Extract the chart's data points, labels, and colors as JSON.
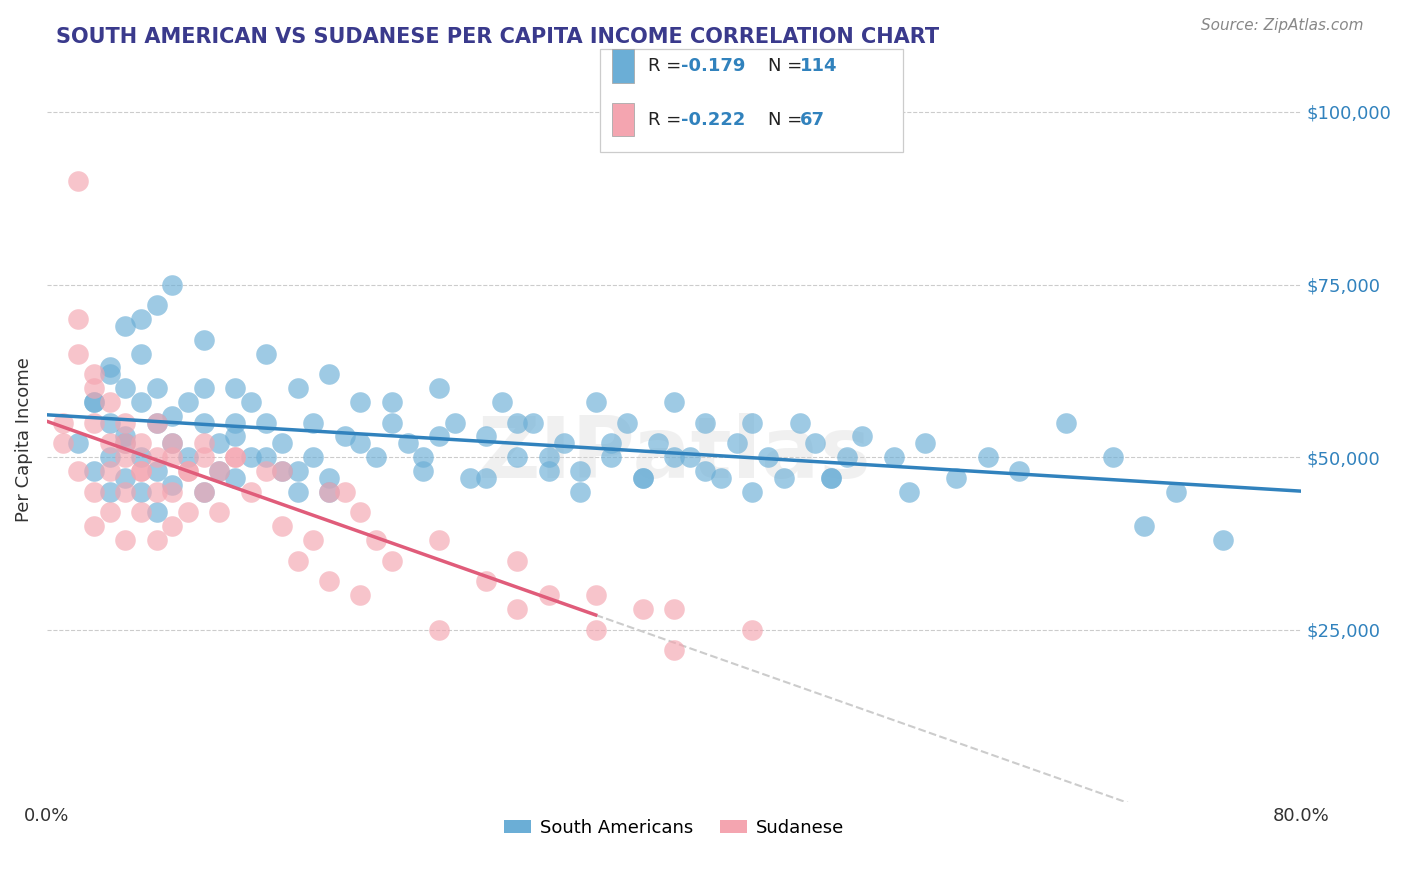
{
  "title": "SOUTH AMERICAN VS SUDANESE PER CAPITA INCOME CORRELATION CHART",
  "source": "Source: ZipAtlas.com",
  "ylabel": "Per Capita Income",
  "xlim": [
    0.0,
    0.8
  ],
  "ylim": [
    0,
    105000
  ],
  "yticks": [
    0,
    25000,
    50000,
    75000,
    100000
  ],
  "ytick_labels": [
    "",
    "$25,000",
    "$50,000",
    "$75,000",
    "$100,000"
  ],
  "legend_r1": "-0.179",
  "legend_n1": "114",
  "legend_r2": "-0.222",
  "legend_n2": "67",
  "color_blue": "#6baed6",
  "color_pink": "#f4a5b0",
  "line_blue": "#3182bd",
  "line_pink": "#e05c7a",
  "line_dashed": "#cccccc",
  "watermark": "ZIPatlas",
  "title_color": "#3a3a8c",
  "source_color": "#888888",
  "background_color": "#ffffff",
  "south_americans_x": [
    0.02,
    0.03,
    0.03,
    0.04,
    0.04,
    0.04,
    0.04,
    0.05,
    0.05,
    0.05,
    0.05,
    0.06,
    0.06,
    0.06,
    0.06,
    0.07,
    0.07,
    0.07,
    0.07,
    0.08,
    0.08,
    0.08,
    0.09,
    0.09,
    0.1,
    0.1,
    0.1,
    0.11,
    0.11,
    0.12,
    0.12,
    0.12,
    0.13,
    0.13,
    0.14,
    0.14,
    0.15,
    0.15,
    0.16,
    0.16,
    0.17,
    0.17,
    0.18,
    0.18,
    0.19,
    0.2,
    0.21,
    0.22,
    0.23,
    0.24,
    0.25,
    0.26,
    0.27,
    0.28,
    0.29,
    0.3,
    0.31,
    0.32,
    0.33,
    0.34,
    0.35,
    0.36,
    0.37,
    0.38,
    0.39,
    0.4,
    0.41,
    0.42,
    0.43,
    0.44,
    0.45,
    0.46,
    0.47,
    0.48,
    0.49,
    0.5,
    0.51,
    0.52,
    0.54,
    0.56,
    0.58,
    0.6,
    0.62,
    0.65,
    0.68,
    0.7,
    0.72,
    0.75,
    0.03,
    0.04,
    0.05,
    0.06,
    0.07,
    0.08,
    0.1,
    0.12,
    0.14,
    0.16,
    0.18,
    0.2,
    0.22,
    0.24,
    0.25,
    0.28,
    0.3,
    0.32,
    0.34,
    0.36,
    0.38,
    0.4,
    0.42,
    0.45,
    0.5,
    0.55
  ],
  "south_americans_y": [
    52000,
    58000,
    48000,
    55000,
    62000,
    45000,
    50000,
    60000,
    52000,
    47000,
    53000,
    58000,
    65000,
    50000,
    45000,
    55000,
    48000,
    42000,
    60000,
    52000,
    56000,
    46000,
    50000,
    58000,
    67000,
    55000,
    45000,
    52000,
    48000,
    60000,
    53000,
    47000,
    58000,
    50000,
    65000,
    55000,
    52000,
    48000,
    60000,
    45000,
    55000,
    50000,
    47000,
    62000,
    53000,
    58000,
    50000,
    55000,
    52000,
    48000,
    60000,
    55000,
    47000,
    53000,
    58000,
    50000,
    55000,
    48000,
    52000,
    45000,
    58000,
    50000,
    55000,
    47000,
    52000,
    58000,
    50000,
    55000,
    47000,
    52000,
    55000,
    50000,
    47000,
    55000,
    52000,
    47000,
    50000,
    53000,
    50000,
    52000,
    47000,
    50000,
    48000,
    55000,
    50000,
    40000,
    45000,
    38000,
    58000,
    63000,
    69000,
    70000,
    72000,
    75000,
    60000,
    55000,
    50000,
    48000,
    45000,
    52000,
    58000,
    50000,
    53000,
    47000,
    55000,
    50000,
    48000,
    52000,
    47000,
    50000,
    48000,
    45000,
    47000,
    45000
  ],
  "sudanese_x": [
    0.01,
    0.02,
    0.02,
    0.02,
    0.03,
    0.03,
    0.03,
    0.03,
    0.04,
    0.04,
    0.04,
    0.05,
    0.05,
    0.05,
    0.05,
    0.06,
    0.06,
    0.06,
    0.07,
    0.07,
    0.07,
    0.08,
    0.08,
    0.08,
    0.09,
    0.09,
    0.1,
    0.1,
    0.11,
    0.11,
    0.12,
    0.13,
    0.14,
    0.15,
    0.16,
    0.17,
    0.18,
    0.19,
    0.2,
    0.21,
    0.22,
    0.25,
    0.28,
    0.3,
    0.32,
    0.35,
    0.38,
    0.4,
    0.01,
    0.02,
    0.03,
    0.04,
    0.05,
    0.06,
    0.07,
    0.08,
    0.09,
    0.1,
    0.12,
    0.15,
    0.18,
    0.2,
    0.25,
    0.3,
    0.35,
    0.4,
    0.45
  ],
  "sudanese_y": [
    52000,
    90000,
    65000,
    48000,
    55000,
    62000,
    45000,
    40000,
    52000,
    48000,
    42000,
    55000,
    50000,
    45000,
    38000,
    52000,
    48000,
    42000,
    50000,
    45000,
    38000,
    52000,
    45000,
    40000,
    48000,
    42000,
    50000,
    45000,
    48000,
    42000,
    50000,
    45000,
    48000,
    40000,
    35000,
    38000,
    32000,
    45000,
    30000,
    38000,
    35000,
    25000,
    32000,
    28000,
    30000,
    25000,
    28000,
    22000,
    55000,
    70000,
    60000,
    58000,
    52000,
    48000,
    55000,
    50000,
    48000,
    52000,
    50000,
    48000,
    45000,
    42000,
    38000,
    35000,
    30000,
    28000,
    25000
  ]
}
